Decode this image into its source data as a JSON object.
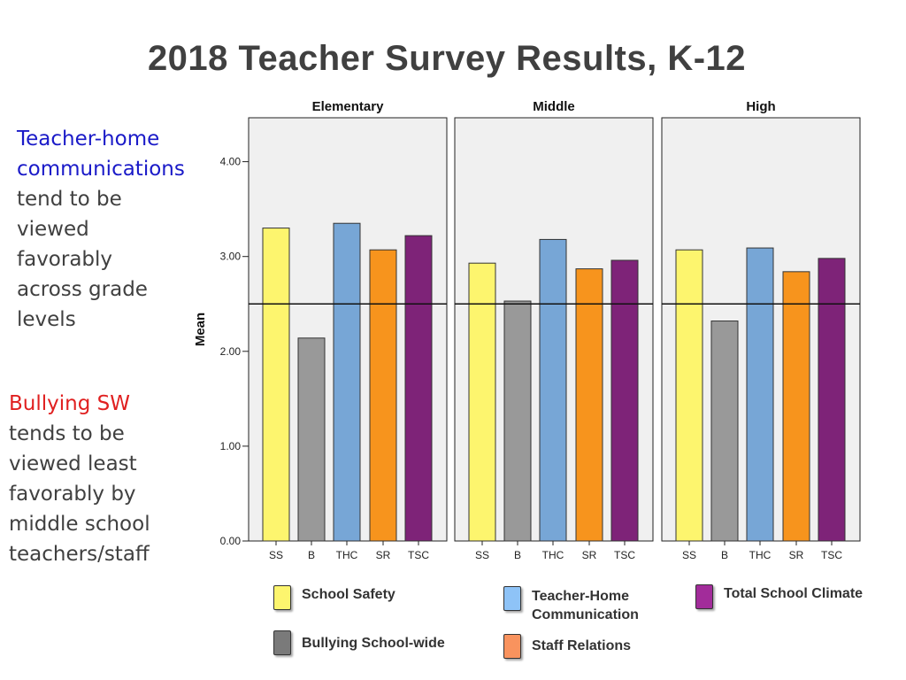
{
  "title": "2018 Teacher Survey Results, K-12",
  "note1": {
    "highlight": [
      "Teacher-home",
      "communications"
    ],
    "rest": [
      "tend to be",
      "viewed",
      "favorably",
      "across grade",
      "levels"
    ],
    "highlight_color": "#1a1ac8"
  },
  "note2": {
    "highlight": [
      "Bullying SW"
    ],
    "rest": [
      "tends to be",
      "viewed least",
      "favorably by",
      "middle school",
      "teachers/staff"
    ],
    "highlight_color": "#e02020"
  },
  "chart_data": {
    "type": "bar",
    "ylabel": "Mean",
    "ylim": [
      0,
      4.5
    ],
    "y_ticks": [
      "0.00",
      "1.00",
      "2.00",
      "3.00",
      "4.00"
    ],
    "y_tick_values": [
      0,
      1,
      2,
      3,
      4
    ],
    "reference_line": 2.5,
    "categories": [
      "SS",
      "B",
      "THC",
      "SR",
      "TSC"
    ],
    "category_colors": [
      "#fdf56e",
      "#999999",
      "#77a6d6",
      "#f7941d",
      "#7e2378"
    ],
    "panels": [
      {
        "name": "Elementary",
        "values": [
          3.3,
          2.14,
          3.35,
          3.07,
          3.22
        ]
      },
      {
        "name": "Middle",
        "values": [
          2.93,
          2.53,
          3.18,
          2.87,
          2.96
        ]
      },
      {
        "name": "High",
        "values": [
          3.07,
          2.32,
          3.09,
          2.84,
          2.98
        ]
      }
    ]
  },
  "legend": [
    {
      "lines": [
        "School Safety"
      ],
      "color": "#fdf56e"
    },
    {
      "lines": [
        "Teacher-Home",
        "Communication"
      ],
      "color": "#8ec3f7"
    },
    {
      "lines": [
        "Total School Climate"
      ],
      "color": "#a22c9a"
    },
    {
      "lines": [
        "Bullying School-wide"
      ],
      "color": "#7a7a7a"
    },
    {
      "lines": [
        "Staff Relations"
      ],
      "color": "#f9935e"
    }
  ]
}
